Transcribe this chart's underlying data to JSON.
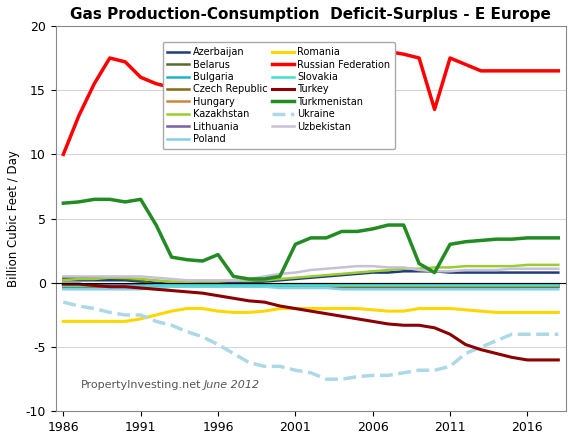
{
  "title": "Gas Production-Consumption  Deficit-Surplus - E Europe",
  "ylabel": "Billion Cubic Feet / Day",
  "watermark": "PropertyInvesting.net",
  "watermark_italic": " June 2012",
  "ylim": [
    -10,
    20
  ],
  "yticks": [
    -10,
    -5,
    0,
    5,
    10,
    15,
    20
  ],
  "years": [
    1986,
    1987,
    1988,
    1989,
    1990,
    1991,
    1992,
    1993,
    1994,
    1995,
    1996,
    1997,
    1998,
    1999,
    2000,
    2001,
    2002,
    2003,
    2004,
    2005,
    2006,
    2007,
    2008,
    2009,
    2010,
    2011,
    2012,
    2013,
    2014,
    2015,
    2016,
    2017,
    2018
  ],
  "series": {
    "Azerbaijan": {
      "color": "#1F3D7A",
      "linewidth": 1.8,
      "linestyle": "-",
      "data": [
        0.2,
        0.2,
        0.2,
        0.2,
        0.2,
        0.1,
        0.0,
        -0.1,
        -0.1,
        0.0,
        0.0,
        0.0,
        0.0,
        0.1,
        0.2,
        0.3,
        0.4,
        0.5,
        0.6,
        0.7,
        0.8,
        0.8,
        0.9,
        0.9,
        0.9,
        0.8,
        0.8,
        0.8,
        0.8,
        0.8,
        0.8,
        0.8,
        0.8
      ]
    },
    "Belarus": {
      "color": "#556B2F",
      "linewidth": 1.8,
      "linestyle": "-",
      "data": [
        0.4,
        0.4,
        0.4,
        0.4,
        0.3,
        0.2,
        -0.2,
        -0.3,
        -0.3,
        -0.3,
        -0.3,
        -0.3,
        -0.3,
        -0.3,
        -0.3,
        -0.3,
        -0.3,
        -0.3,
        -0.4,
        -0.4,
        -0.4,
        -0.4,
        -0.4,
        -0.4,
        -0.4,
        -0.4,
        -0.4,
        -0.4,
        -0.4,
        -0.4,
        -0.3,
        -0.3,
        -0.3
      ]
    },
    "Bulgaria": {
      "color": "#20B2CC",
      "linewidth": 1.8,
      "linestyle": "-",
      "data": [
        -0.3,
        -0.3,
        -0.3,
        -0.3,
        -0.3,
        -0.2,
        -0.1,
        -0.1,
        -0.1,
        -0.1,
        -0.1,
        -0.1,
        -0.1,
        -0.1,
        -0.1,
        -0.1,
        -0.1,
        -0.1,
        -0.1,
        -0.1,
        -0.1,
        -0.1,
        -0.1,
        -0.1,
        -0.1,
        -0.1,
        -0.1,
        -0.1,
        -0.1,
        -0.1,
        -0.1,
        -0.1,
        -0.1
      ]
    },
    "Czech Republic": {
      "color": "#8B6914",
      "linewidth": 1.8,
      "linestyle": "-",
      "data": [
        -0.4,
        -0.4,
        -0.4,
        -0.4,
        -0.4,
        -0.4,
        -0.35,
        -0.3,
        -0.3,
        -0.3,
        -0.3,
        -0.3,
        -0.3,
        -0.3,
        -0.3,
        -0.3,
        -0.3,
        -0.3,
        -0.3,
        -0.3,
        -0.3,
        -0.3,
        -0.3,
        -0.3,
        -0.3,
        -0.3,
        -0.3,
        -0.3,
        -0.3,
        -0.3,
        -0.3,
        -0.3,
        -0.3
      ]
    },
    "Hungary": {
      "color": "#CD853F",
      "linewidth": 1.8,
      "linestyle": "-",
      "data": [
        -0.2,
        -0.2,
        -0.2,
        -0.2,
        -0.2,
        -0.2,
        -0.2,
        -0.15,
        -0.15,
        -0.15,
        -0.15,
        -0.15,
        -0.15,
        -0.15,
        -0.2,
        -0.2,
        -0.2,
        -0.2,
        -0.2,
        -0.2,
        -0.2,
        -0.2,
        -0.2,
        -0.2,
        -0.2,
        -0.2,
        -0.2,
        -0.2,
        -0.2,
        -0.2,
        -0.2,
        -0.2,
        -0.2
      ]
    },
    "Kazakhstan": {
      "color": "#9ACD32",
      "linewidth": 1.8,
      "linestyle": "-",
      "data": [
        0.2,
        0.3,
        0.3,
        0.4,
        0.4,
        0.3,
        0.2,
        0.1,
        0.1,
        0.1,
        0.1,
        0.2,
        0.2,
        0.2,
        0.3,
        0.4,
        0.5,
        0.6,
        0.7,
        0.8,
        0.9,
        1.0,
        1.1,
        1.1,
        1.2,
        1.2,
        1.3,
        1.3,
        1.3,
        1.3,
        1.4,
        1.4,
        1.4
      ]
    },
    "Lithuania": {
      "color": "#7B5EA7",
      "linewidth": 1.8,
      "linestyle": "-",
      "data": [
        -0.1,
        -0.1,
        -0.1,
        -0.1,
        -0.1,
        -0.1,
        -0.1,
        -0.1,
        -0.1,
        -0.1,
        -0.1,
        -0.1,
        -0.1,
        -0.1,
        -0.1,
        -0.1,
        -0.1,
        -0.1,
        -0.1,
        -0.1,
        -0.1,
        -0.1,
        -0.1,
        -0.1,
        -0.1,
        -0.1,
        -0.1,
        -0.1,
        -0.1,
        -0.1,
        -0.1,
        -0.1,
        -0.1
      ]
    },
    "Poland": {
      "color": "#87CEEB",
      "linewidth": 1.8,
      "linestyle": "-",
      "data": [
        -0.5,
        -0.5,
        -0.5,
        -0.5,
        -0.5,
        -0.5,
        -0.4,
        -0.3,
        -0.3,
        -0.3,
        -0.3,
        -0.3,
        -0.3,
        -0.3,
        -0.4,
        -0.4,
        -0.4,
        -0.4,
        -0.5,
        -0.5,
        -0.5,
        -0.5,
        -0.5,
        -0.5,
        -0.5,
        -0.5,
        -0.5,
        -0.5,
        -0.5,
        -0.5,
        -0.5,
        -0.5,
        -0.5
      ]
    },
    "Romania": {
      "color": "#FFD700",
      "linewidth": 2.2,
      "linestyle": "-",
      "data": [
        -3.0,
        -3.0,
        -3.0,
        -3.0,
        -3.0,
        -2.8,
        -2.5,
        -2.2,
        -2.0,
        -2.0,
        -2.2,
        -2.3,
        -2.3,
        -2.2,
        -2.0,
        -2.0,
        -2.0,
        -2.0,
        -2.0,
        -2.0,
        -2.1,
        -2.2,
        -2.2,
        -2.0,
        -2.0,
        -2.0,
        -2.1,
        -2.2,
        -2.3,
        -2.3,
        -2.3,
        -2.3,
        -2.3
      ]
    },
    "Russian Federation": {
      "color": "#FF0000",
      "linewidth": 2.5,
      "linestyle": "-",
      "data": [
        10.0,
        13.0,
        15.5,
        17.5,
        17.2,
        16.0,
        15.5,
        15.2,
        15.5,
        16.5,
        16.0,
        17.0,
        17.5,
        17.0,
        15.3,
        17.5,
        17.0,
        17.5,
        17.5,
        17.5,
        17.5,
        18.0,
        17.8,
        17.5,
        13.5,
        17.5,
        17.0,
        16.5,
        16.5,
        16.5,
        16.5,
        16.5,
        16.5
      ]
    },
    "Slovakia": {
      "color": "#40E0D0",
      "linewidth": 1.8,
      "linestyle": "-",
      "data": [
        -0.25,
        -0.25,
        -0.25,
        -0.25,
        -0.25,
        -0.25,
        -0.2,
        -0.2,
        -0.2,
        -0.2,
        -0.2,
        -0.2,
        -0.2,
        -0.2,
        -0.2,
        -0.2,
        -0.2,
        -0.2,
        -0.2,
        -0.2,
        -0.2,
        -0.2,
        -0.2,
        -0.2,
        -0.2,
        -0.2,
        -0.2,
        -0.2,
        -0.2,
        -0.2,
        -0.2,
        -0.2,
        -0.2
      ]
    },
    "Turkey": {
      "color": "#8B0000",
      "linewidth": 2.2,
      "linestyle": "-",
      "data": [
        -0.1,
        -0.1,
        -0.2,
        -0.3,
        -0.3,
        -0.4,
        -0.5,
        -0.6,
        -0.7,
        -0.8,
        -1.0,
        -1.2,
        -1.4,
        -1.5,
        -1.8,
        -2.0,
        -2.2,
        -2.4,
        -2.6,
        -2.8,
        -3.0,
        -3.2,
        -3.3,
        -3.3,
        -3.5,
        -4.0,
        -4.8,
        -5.2,
        -5.5,
        -5.8,
        -6.0,
        -6.0,
        -6.0
      ]
    },
    "Turkmenistan": {
      "color": "#228B22",
      "linewidth": 2.5,
      "linestyle": "-",
      "data": [
        6.2,
        6.3,
        6.5,
        6.5,
        6.3,
        6.5,
        4.5,
        2.0,
        1.8,
        1.7,
        2.2,
        0.5,
        0.3,
        0.3,
        0.5,
        3.0,
        3.5,
        3.5,
        4.0,
        4.0,
        4.2,
        4.5,
        4.5,
        1.5,
        0.8,
        3.0,
        3.2,
        3.3,
        3.4,
        3.4,
        3.5,
        3.5,
        3.5
      ]
    },
    "Ukraine": {
      "color": "#ADD8E6",
      "linewidth": 2.5,
      "linestyle": "--",
      "data": [
        -1.5,
        -1.8,
        -2.0,
        -2.3,
        -2.5,
        -2.5,
        -3.0,
        -3.3,
        -3.8,
        -4.2,
        -4.8,
        -5.5,
        -6.2,
        -6.5,
        -6.5,
        -6.8,
        -7.0,
        -7.5,
        -7.5,
        -7.3,
        -7.2,
        -7.2,
        -7.0,
        -6.8,
        -6.8,
        -6.5,
        -5.5,
        -5.0,
        -4.5,
        -4.0,
        -4.0,
        -4.0,
        -4.0
      ]
    },
    "Uzbekistan": {
      "color": "#C8C0D8",
      "linewidth": 1.8,
      "linestyle": "-",
      "data": [
        0.5,
        0.5,
        0.5,
        0.5,
        0.5,
        0.5,
        0.4,
        0.3,
        0.2,
        0.2,
        0.2,
        0.2,
        0.3,
        0.5,
        0.7,
        0.8,
        1.0,
        1.1,
        1.2,
        1.3,
        1.3,
        1.2,
        1.2,
        1.0,
        0.9,
        0.9,
        1.0,
        1.0,
        1.0,
        1.1,
        1.1,
        1.1,
        1.1
      ]
    }
  },
  "legend_col1": [
    "Azerbaijan",
    "Bulgaria",
    "Hungary",
    "Lithuania",
    "Romania",
    "Slovakia",
    "Turkmenistan",
    "Uzbekistan"
  ],
  "legend_col2": [
    "Belarus",
    "Czech Republic",
    "Kazakhstan",
    "Poland",
    "Russian Federation",
    "Turkey",
    "Ukraine"
  ],
  "xticks": [
    1986,
    1991,
    1996,
    2001,
    2006,
    2011,
    2016
  ],
  "background_color": "#ffffff"
}
